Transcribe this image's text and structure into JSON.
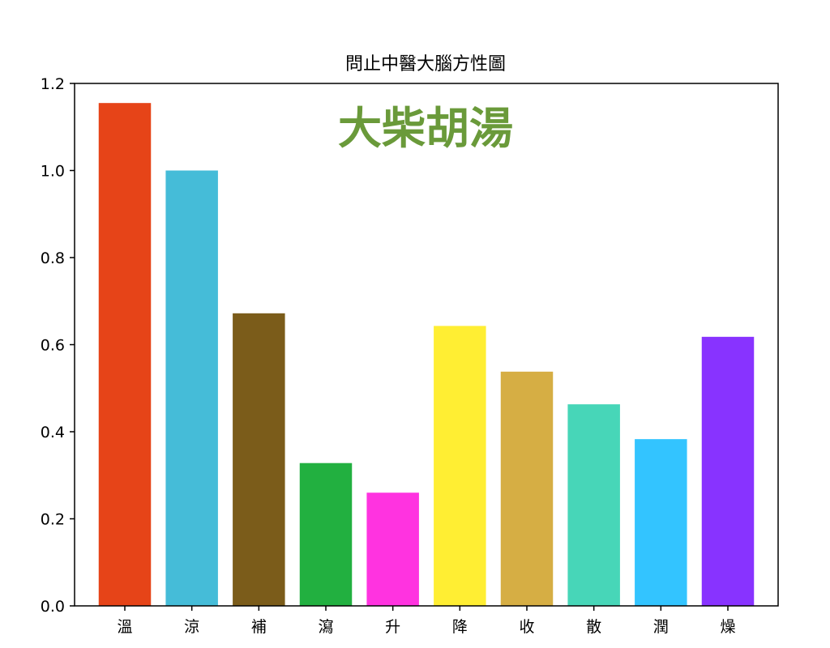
{
  "chart_data": {
    "type": "bar",
    "title": "問止中醫大腦方性圖",
    "annotation": "大柴胡湯",
    "annotation_color": "#6a9a3a",
    "categories": [
      "溫",
      "涼",
      "補",
      "瀉",
      "升",
      "降",
      "收",
      "散",
      "潤",
      "燥"
    ],
    "values": [
      1.155,
      1.0,
      0.672,
      0.328,
      0.26,
      0.643,
      0.538,
      0.463,
      0.383,
      0.618
    ],
    "colors": [
      "#e64418",
      "#45bcd8",
      "#7b5c1a",
      "#22b040",
      "#ff33e0",
      "#ffee33",
      "#d6ae44",
      "#47d6b8",
      "#33c4ff",
      "#8833ff"
    ],
    "ylim": [
      0,
      1.2
    ],
    "yticks": [
      "0.0",
      "0.2",
      "0.4",
      "0.6",
      "0.8",
      "1.0",
      "1.2"
    ],
    "grid": false,
    "xlabel": "",
    "ylabel": ""
  }
}
